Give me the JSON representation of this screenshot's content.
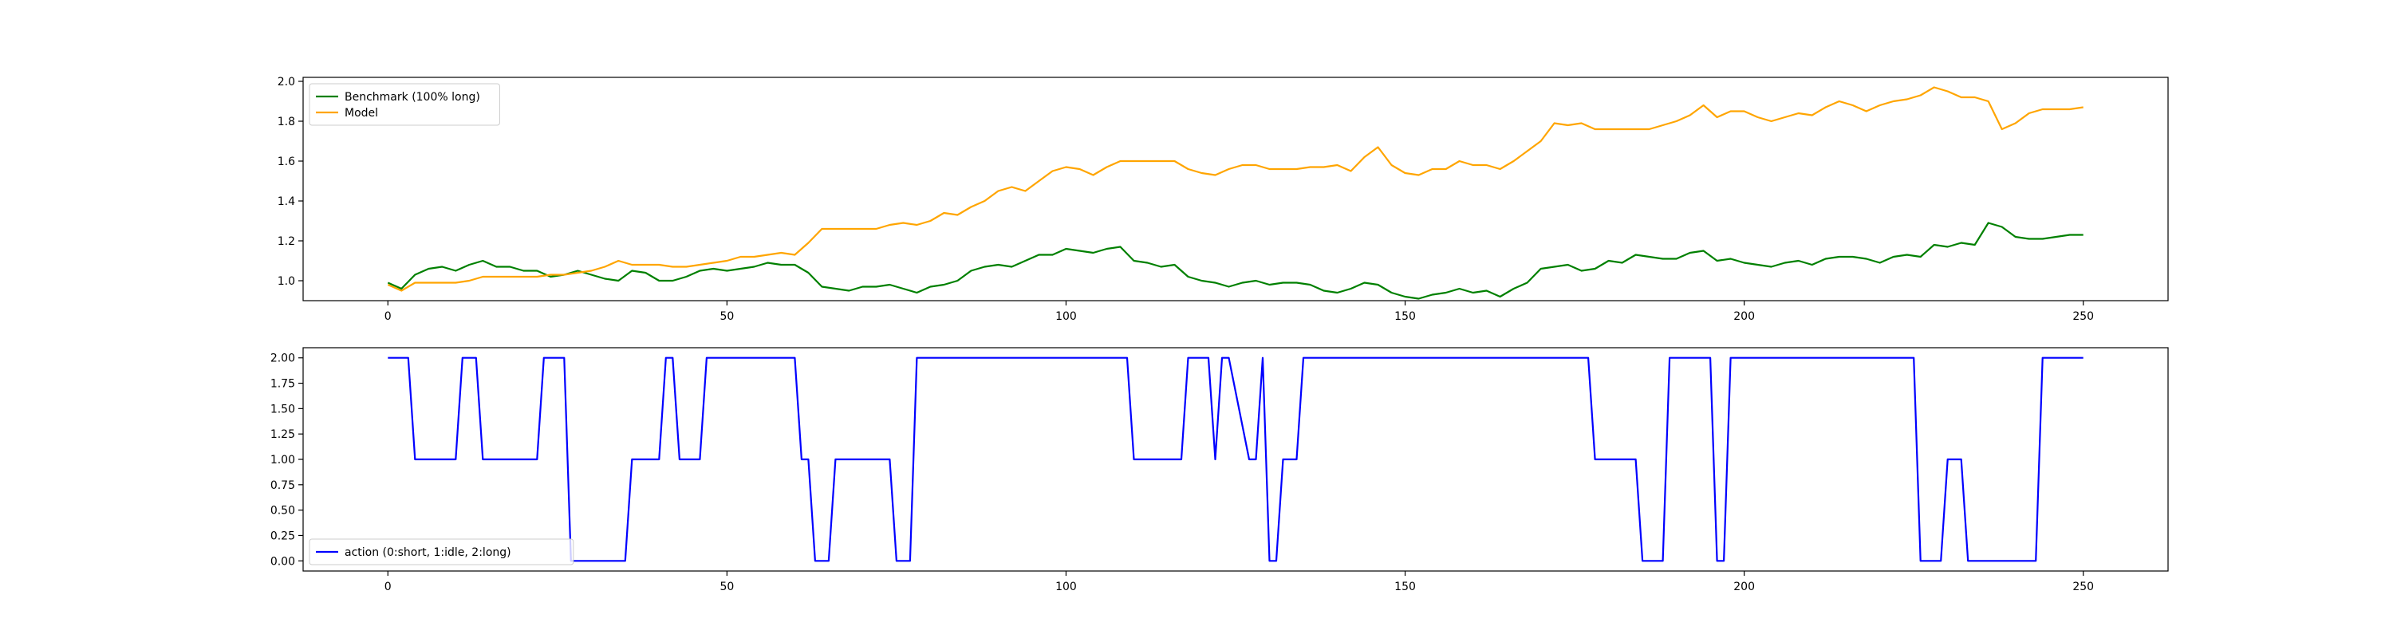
{
  "chart_data": [
    {
      "type": "line",
      "title": "",
      "xlabel": "",
      "ylabel": "",
      "xlim": [
        -12.5,
        262.5
      ],
      "ylim": [
        0.9,
        2.02
      ],
      "xticks": [
        0,
        50,
        100,
        150,
        200,
        250
      ],
      "xtick_labels": [
        "0",
        "50",
        "100",
        "150",
        "200",
        "250"
      ],
      "yticks": [
        1.0,
        1.2,
        1.4,
        1.6,
        1.8,
        2.0
      ],
      "ytick_labels": [
        "1.0",
        "1.2",
        "1.4",
        "1.6",
        "1.8",
        "2.0"
      ],
      "grid": false,
      "legend_position": "top-left",
      "series": [
        {
          "name": "Benchmark (100% long)",
          "color": "#008000",
          "x": [
            0,
            2,
            4,
            6,
            8,
            10,
            12,
            14,
            16,
            18,
            20,
            22,
            24,
            26,
            28,
            30,
            32,
            34,
            36,
            38,
            40,
            42,
            44,
            46,
            48,
            50,
            52,
            54,
            56,
            58,
            60,
            62,
            64,
            66,
            68,
            70,
            72,
            74,
            76,
            78,
            80,
            82,
            84,
            86,
            88,
            90,
            92,
            94,
            96,
            98,
            100,
            102,
            104,
            106,
            108,
            110,
            112,
            114,
            116,
            118,
            120,
            122,
            124,
            126,
            128,
            130,
            132,
            134,
            136,
            138,
            140,
            142,
            144,
            146,
            148,
            150,
            152,
            154,
            156,
            158,
            160,
            162,
            164,
            166,
            168,
            170,
            172,
            174,
            176,
            178,
            180,
            182,
            184,
            186,
            188,
            190,
            192,
            194,
            196,
            198,
            200,
            202,
            204,
            206,
            208,
            210,
            212,
            214,
            216,
            218,
            220,
            222,
            224,
            226,
            228,
            230,
            232,
            234,
            236,
            238,
            240,
            242,
            244,
            246,
            248,
            250
          ],
          "values": [
            0.99,
            0.96,
            1.03,
            1.06,
            1.07,
            1.05,
            1.08,
            1.1,
            1.07,
            1.07,
            1.05,
            1.05,
            1.02,
            1.03,
            1.05,
            1.03,
            1.01,
            1.0,
            1.05,
            1.04,
            1.0,
            1.0,
            1.02,
            1.05,
            1.06,
            1.05,
            1.06,
            1.07,
            1.09,
            1.08,
            1.08,
            1.04,
            0.97,
            0.96,
            0.95,
            0.97,
            0.97,
            0.98,
            0.96,
            0.94,
            0.97,
            0.98,
            1.0,
            1.05,
            1.07,
            1.08,
            1.07,
            1.1,
            1.13,
            1.13,
            1.16,
            1.15,
            1.14,
            1.16,
            1.17,
            1.1,
            1.09,
            1.07,
            1.08,
            1.02,
            1.0,
            0.99,
            0.97,
            0.99,
            1.0,
            0.98,
            0.99,
            0.99,
            0.98,
            0.95,
            0.94,
            0.96,
            0.99,
            0.98,
            0.94,
            0.92,
            0.91,
            0.93,
            0.94,
            0.96,
            0.94,
            0.95,
            0.92,
            0.96,
            0.99,
            1.06,
            1.07,
            1.08,
            1.05,
            1.06,
            1.1,
            1.09,
            1.13,
            1.12,
            1.11,
            1.11,
            1.14,
            1.15,
            1.1,
            1.11,
            1.09,
            1.08,
            1.07,
            1.09,
            1.1,
            1.08,
            1.11,
            1.12,
            1.12,
            1.11,
            1.09,
            1.12,
            1.13,
            1.12,
            1.18,
            1.17,
            1.19,
            1.18,
            1.29,
            1.27,
            1.22,
            1.21,
            1.21,
            1.22,
            1.23,
            1.23
          ]
        },
        {
          "name": "Model",
          "color": "#FFA500",
          "x": [
            0,
            2,
            4,
            6,
            8,
            10,
            12,
            14,
            16,
            18,
            20,
            22,
            24,
            26,
            28,
            30,
            32,
            34,
            36,
            38,
            40,
            42,
            44,
            46,
            48,
            50,
            52,
            54,
            56,
            58,
            60,
            62,
            64,
            66,
            68,
            70,
            72,
            74,
            76,
            78,
            80,
            82,
            84,
            86,
            88,
            90,
            92,
            94,
            96,
            98,
            100,
            102,
            104,
            106,
            108,
            110,
            112,
            114,
            116,
            118,
            120,
            122,
            124,
            126,
            128,
            130,
            132,
            134,
            136,
            138,
            140,
            142,
            144,
            146,
            148,
            150,
            152,
            154,
            156,
            158,
            160,
            162,
            164,
            166,
            168,
            170,
            172,
            174,
            176,
            178,
            180,
            182,
            184,
            186,
            188,
            190,
            192,
            194,
            196,
            198,
            200,
            202,
            204,
            206,
            208,
            210,
            212,
            214,
            216,
            218,
            220,
            222,
            224,
            226,
            228,
            230,
            232,
            234,
            236,
            238,
            240,
            242,
            244,
            246,
            248,
            250
          ],
          "values": [
            0.98,
            0.95,
            0.99,
            0.99,
            0.99,
            0.99,
            1.0,
            1.02,
            1.02,
            1.02,
            1.02,
            1.02,
            1.03,
            1.03,
            1.04,
            1.05,
            1.07,
            1.1,
            1.08,
            1.08,
            1.08,
            1.07,
            1.07,
            1.08,
            1.09,
            1.1,
            1.12,
            1.12,
            1.13,
            1.14,
            1.13,
            1.19,
            1.26,
            1.26,
            1.26,
            1.26,
            1.26,
            1.28,
            1.29,
            1.28,
            1.3,
            1.34,
            1.33,
            1.37,
            1.4,
            1.45,
            1.47,
            1.45,
            1.5,
            1.55,
            1.57,
            1.56,
            1.53,
            1.57,
            1.6,
            1.6,
            1.6,
            1.6,
            1.6,
            1.56,
            1.54,
            1.53,
            1.56,
            1.58,
            1.58,
            1.56,
            1.56,
            1.56,
            1.57,
            1.57,
            1.58,
            1.55,
            1.62,
            1.67,
            1.58,
            1.54,
            1.53,
            1.56,
            1.56,
            1.6,
            1.58,
            1.58,
            1.56,
            1.6,
            1.65,
            1.7,
            1.79,
            1.78,
            1.79,
            1.76,
            1.76,
            1.76,
            1.76,
            1.76,
            1.78,
            1.8,
            1.83,
            1.88,
            1.82,
            1.85,
            1.85,
            1.82,
            1.8,
            1.82,
            1.84,
            1.83,
            1.87,
            1.9,
            1.88,
            1.85,
            1.88,
            1.9,
            1.91,
            1.93,
            1.97,
            1.95,
            1.92,
            1.92,
            1.9,
            1.76,
            1.79,
            1.84,
            1.86,
            1.86,
            1.86,
            1.87
          ]
        }
      ]
    },
    {
      "type": "line",
      "title": "",
      "xlabel": "",
      "ylabel": "",
      "xlim": [
        -12.5,
        262.5
      ],
      "ylim": [
        -0.1,
        2.1
      ],
      "xticks": [
        0,
        50,
        100,
        150,
        200,
        250
      ],
      "xtick_labels": [
        "0",
        "50",
        "100",
        "150",
        "200",
        "250"
      ],
      "yticks": [
        0.0,
        0.25,
        0.5,
        0.75,
        1.0,
        1.25,
        1.5,
        1.75,
        2.0
      ],
      "ytick_labels": [
        "0.00",
        "0.25",
        "0.50",
        "0.75",
        "1.00",
        "1.25",
        "1.50",
        "1.75",
        "2.00"
      ],
      "grid": false,
      "legend_position": "bottom-left",
      "series": [
        {
          "name": "action (0:short, 1:idle, 2:long)",
          "color": "#0000FF",
          "x": [
            0,
            3,
            4,
            10,
            11,
            13,
            14,
            22,
            23,
            26,
            27,
            35,
            36,
            40,
            41,
            42,
            43,
            46,
            47,
            60,
            61,
            62,
            63,
            65,
            66,
            74,
            75,
            77,
            78,
            109,
            110,
            117,
            118,
            121,
            122,
            123,
            124,
            127,
            128,
            129,
            130,
            131,
            132,
            134,
            135,
            138,
            139,
            177,
            178,
            184,
            185,
            188,
            189,
            195,
            196,
            197,
            198,
            225,
            226,
            229,
            230,
            232,
            233,
            243,
            244,
            250
          ],
          "values": [
            2,
            2,
            1,
            1,
            2,
            2,
            1,
            1,
            2,
            2,
            0,
            0,
            1,
            1,
            2,
            2,
            1,
            1,
            2,
            2,
            1,
            1,
            0,
            0,
            1,
            1,
            0,
            0,
            2,
            2,
            1,
            1,
            2,
            2,
            1,
            2,
            2,
            1,
            1,
            2,
            0,
            0,
            1,
            1,
            2,
            2,
            2,
            2,
            1,
            1,
            0,
            0,
            2,
            2,
            0,
            0,
            2,
            2,
            0,
            0,
            1,
            1,
            0,
            0,
            2,
            2
          ]
        }
      ]
    }
  ]
}
